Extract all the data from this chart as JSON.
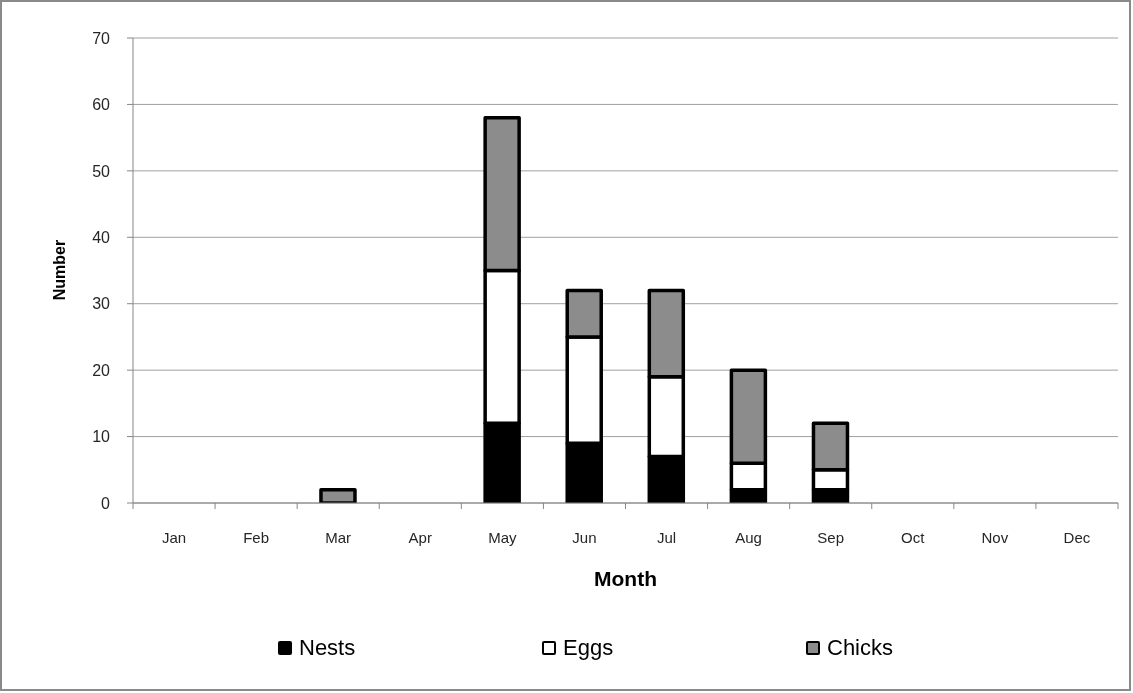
{
  "chart_data": {
    "type": "bar",
    "stacked": true,
    "xlabel": "Month",
    "ylabel": "Number",
    "categories": [
      "Jan",
      "Feb",
      "Mar",
      "Apr",
      "May",
      "Jun",
      "Jul",
      "Aug",
      "Sep",
      "Oct",
      "Nov",
      "Dec"
    ],
    "series": [
      {
        "name": "Nests",
        "color": "#000000",
        "values": [
          0,
          0,
          0,
          0,
          12,
          9,
          7,
          2,
          2,
          0,
          0,
          0
        ]
      },
      {
        "name": "Eggs",
        "color": "#ffffff",
        "values": [
          0,
          0,
          0,
          0,
          23,
          16,
          12,
          4,
          3,
          0,
          0,
          0
        ]
      },
      {
        "name": "Chicks",
        "color": "#8c8c8c",
        "values": [
          0,
          0,
          2,
          0,
          23,
          7,
          13,
          14,
          7,
          0,
          0,
          0
        ]
      }
    ],
    "ylim": [
      0,
      70
    ],
    "yticks": [
      0,
      10,
      20,
      30,
      40,
      50,
      60,
      70
    ],
    "grid": "y",
    "legend": "bottom"
  }
}
